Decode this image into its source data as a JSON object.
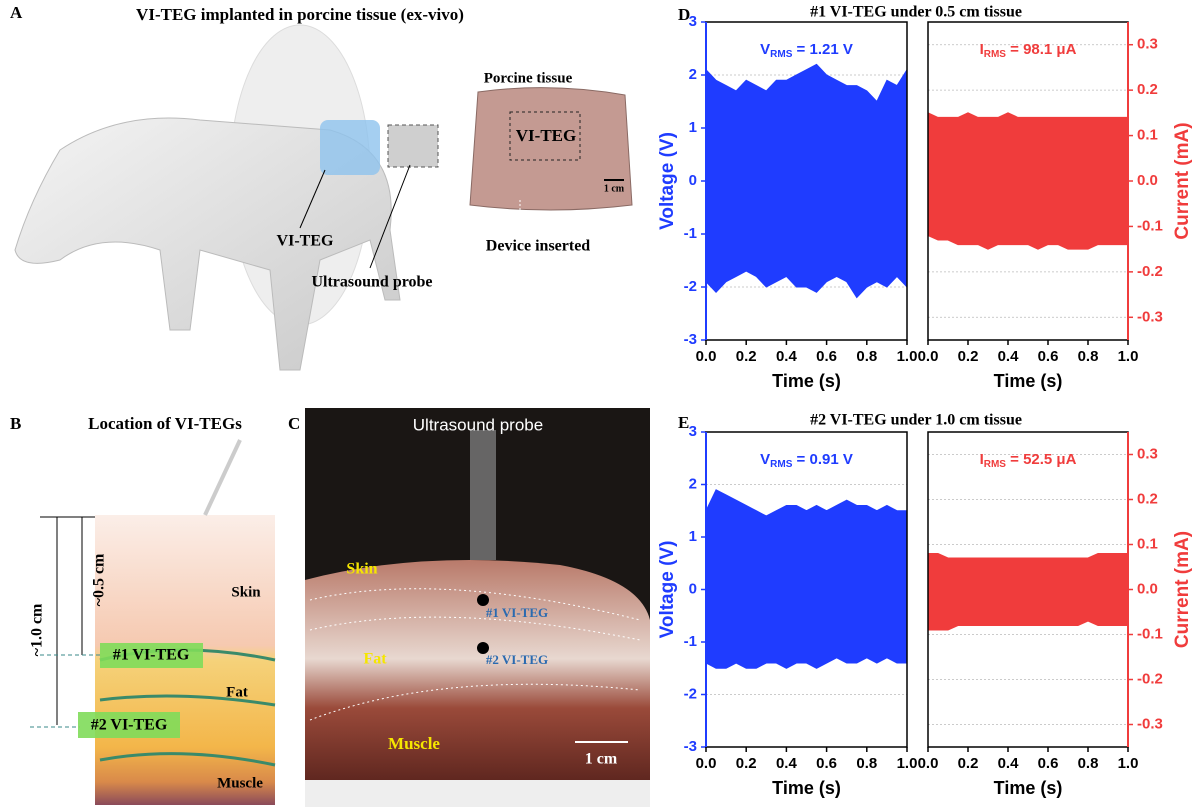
{
  "figure": {
    "A": {
      "letter": "A",
      "title": "VI-TEG implanted in porcine tissue (ex-vivo)",
      "device_label": "VI-TEG",
      "probe_label": "Ultrasound probe",
      "tissue_title": "Porcine tissue",
      "tissue_device": "VI-TEG",
      "scale": "1 cm",
      "inserted": "Device inserted"
    },
    "B": {
      "letter": "B",
      "title": "Location of VI-TEGs",
      "depth_total": "~1.0 cm",
      "depth_half": "~0.5 cm",
      "skin": "Skin",
      "teg1": "#1 VI-TEG",
      "fat": "Fat",
      "teg2": "#2 VI-TEG",
      "muscle": "Muscle"
    },
    "C": {
      "letter": "C",
      "probe": "Ultrasound probe",
      "skin": "Skin",
      "teg1": "#1 VI-TEG",
      "fat": "Fat",
      "teg2": "#2 VI-TEG",
      "muscle": "Muscle",
      "scale": "1 cm"
    },
    "D": {
      "letter": "D",
      "title": "#1 VI-TEG under 0.5 cm tissue"
    },
    "E": {
      "letter": "E",
      "title": "#2 VI-TEG under 1.0 cm tissue"
    }
  },
  "chart_data": [
    {
      "type": "area",
      "xlabel": "Time (s)",
      "ylabel": "Voltage (V)",
      "color": "#1f3cff",
      "y_axis_side": "left",
      "annotation": {
        "main": "V",
        "sub": "RMS",
        "rest": " = 1.21 V"
      },
      "x": [
        0,
        0.05,
        0.1,
        0.15,
        0.2,
        0.25,
        0.3,
        0.35,
        0.4,
        0.45,
        0.5,
        0.55,
        0.6,
        0.65,
        0.7,
        0.75,
        0.8,
        0.85,
        0.9,
        0.95,
        1
      ],
      "upper": [
        2.1,
        1.9,
        1.8,
        1.7,
        1.9,
        1.8,
        1.7,
        1.9,
        1.9,
        2.0,
        2.1,
        2.2,
        2.0,
        1.9,
        1.8,
        1.8,
        1.7,
        1.5,
        1.9,
        1.8,
        2.1
      ],
      "lower": [
        -1.9,
        -2.1,
        -1.9,
        -1.8,
        -1.7,
        -1.8,
        -2.0,
        -1.9,
        -1.8,
        -2.0,
        -2.0,
        -2.1,
        -1.9,
        -1.8,
        -1.9,
        -2.2,
        -2.0,
        -1.9,
        -2.0,
        -1.8,
        -2.0
      ],
      "xlim": [
        0,
        1
      ],
      "xticks": [
        {
          "value": 0,
          "label": "0.0"
        },
        0.2,
        0.4,
        0.6,
        0.8,
        {
          "value": 1,
          "label": "1.0"
        }
      ],
      "ylim": [
        -3,
        3
      ],
      "yticks": [
        3,
        2,
        1,
        0,
        -1,
        -2,
        -3
      ],
      "grid": true
    },
    {
      "type": "area",
      "xlabel": "Time (s)",
      "ylabel": "Current (mA)",
      "color": "#f03c3c",
      "y_axis_side": "right",
      "annotation": {
        "main": "I",
        "sub": "RMS",
        "rest": " = 98.1 μA"
      },
      "x": [
        0,
        0.05,
        0.1,
        0.15,
        0.2,
        0.25,
        0.3,
        0.35,
        0.4,
        0.45,
        0.5,
        0.55,
        0.6,
        0.65,
        0.7,
        0.75,
        0.8,
        0.85,
        0.9,
        0.95,
        1
      ],
      "upper": [
        0.15,
        0.14,
        0.14,
        0.14,
        0.15,
        0.14,
        0.14,
        0.14,
        0.15,
        0.14,
        0.14,
        0.14,
        0.14,
        0.14,
        0.14,
        0.14,
        0.14,
        0.14,
        0.14,
        0.14,
        0.14
      ],
      "lower": [
        -0.12,
        -0.13,
        -0.13,
        -0.14,
        -0.14,
        -0.14,
        -0.15,
        -0.14,
        -0.14,
        -0.14,
        -0.14,
        -0.15,
        -0.14,
        -0.14,
        -0.15,
        -0.15,
        -0.15,
        -0.14,
        -0.14,
        -0.14,
        -0.14
      ],
      "xlim": [
        0,
        1
      ],
      "xticks": [
        {
          "value": 0,
          "label": "0.0"
        },
        0.2,
        0.4,
        0.6,
        0.8,
        {
          "value": 1,
          "label": "1.0"
        }
      ],
      "ylim": [
        -0.35,
        0.35
      ],
      "yticks": [
        0.3,
        0.2,
        0.1,
        {
          "value": 0,
          "label": "0.0"
        },
        -0.1,
        -0.2,
        -0.3
      ],
      "grid": true
    },
    {
      "type": "area",
      "xlabel": "Time (s)",
      "ylabel": "Voltage (V)",
      "color": "#1f3cff",
      "y_axis_side": "left",
      "annotation": {
        "main": "V",
        "sub": "RMS",
        "rest": " = 0.91 V"
      },
      "x": [
        0,
        0.05,
        0.1,
        0.15,
        0.2,
        0.25,
        0.3,
        0.35,
        0.4,
        0.45,
        0.5,
        0.55,
        0.6,
        0.65,
        0.7,
        0.75,
        0.8,
        0.85,
        0.9,
        0.95,
        1
      ],
      "upper": [
        1.5,
        1.9,
        1.8,
        1.7,
        1.6,
        1.5,
        1.4,
        1.5,
        1.6,
        1.6,
        1.5,
        1.6,
        1.5,
        1.6,
        1.7,
        1.6,
        1.6,
        1.5,
        1.6,
        1.5,
        1.5
      ],
      "lower": [
        -1.4,
        -1.5,
        -1.5,
        -1.4,
        -1.5,
        -1.5,
        -1.4,
        -1.4,
        -1.5,
        -1.4,
        -1.4,
        -1.5,
        -1.4,
        -1.3,
        -1.4,
        -1.4,
        -1.3,
        -1.4,
        -1.3,
        -1.4,
        -1.4
      ],
      "xlim": [
        0,
        1
      ],
      "xticks": [
        {
          "value": 0,
          "label": "0.0"
        },
        0.2,
        0.4,
        0.6,
        0.8,
        {
          "value": 1,
          "label": "1.0"
        }
      ],
      "ylim": [
        -3,
        3
      ],
      "yticks": [
        3,
        2,
        1,
        0,
        -1,
        -2,
        -3
      ],
      "grid": true
    },
    {
      "type": "area",
      "xlabel": "Time (s)",
      "ylabel": "Current (mA)",
      "color": "#f03c3c",
      "y_axis_side": "right",
      "annotation": {
        "main": "I",
        "sub": "RMS",
        "rest": " = 52.5 μA"
      },
      "x": [
        0,
        0.05,
        0.1,
        0.15,
        0.2,
        0.25,
        0.3,
        0.35,
        0.4,
        0.45,
        0.5,
        0.55,
        0.6,
        0.65,
        0.7,
        0.75,
        0.8,
        0.85,
        0.9,
        0.95,
        1
      ],
      "upper": [
        0.08,
        0.08,
        0.07,
        0.07,
        0.07,
        0.07,
        0.07,
        0.07,
        0.07,
        0.07,
        0.07,
        0.07,
        0.07,
        0.07,
        0.07,
        0.07,
        0.07,
        0.08,
        0.08,
        0.08,
        0.08
      ],
      "lower": [
        -0.09,
        -0.09,
        -0.09,
        -0.08,
        -0.08,
        -0.08,
        -0.08,
        -0.08,
        -0.08,
        -0.08,
        -0.08,
        -0.08,
        -0.08,
        -0.08,
        -0.08,
        -0.08,
        -0.07,
        -0.08,
        -0.08,
        -0.08,
        -0.08
      ],
      "xlim": [
        0,
        1
      ],
      "xticks": [
        {
          "value": 0,
          "label": "0.0"
        },
        0.2,
        0.4,
        0.6,
        0.8,
        {
          "value": 1,
          "label": "1.0"
        }
      ],
      "ylim": [
        -0.35,
        0.35
      ],
      "yticks": [
        0.3,
        0.2,
        0.1,
        {
          "value": 0,
          "label": "0.0"
        },
        -0.1,
        -0.2,
        -0.3
      ],
      "grid": true
    }
  ]
}
